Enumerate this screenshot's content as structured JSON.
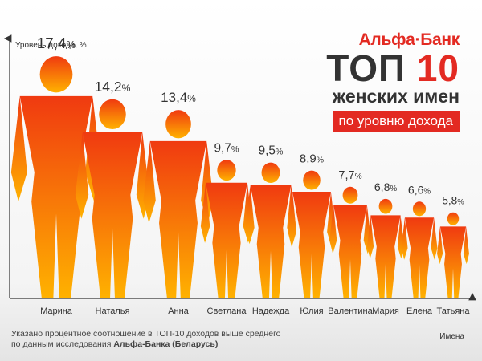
{
  "brand": {
    "name": "Альфа·Банк",
    "top_word": "ТОП",
    "top_number": "10",
    "subtitle": "женских имен",
    "badge": "по уровню дохода"
  },
  "footnote": {
    "line1": "Указано процентное соотношение в ТОП-10 доходов выше среднего",
    "line2_prefix": "по данным исследования",
    "line2_bold": "Альфа-Банка (Беларусь)"
  },
  "colors": {
    "accent": "#e32a22",
    "figure_top": "#f03a10",
    "figure_bottom": "#ffb200"
  },
  "chart_data": {
    "type": "bar",
    "ylabel": "Уровень дохода, %",
    "xlabel": "Имена",
    "categories": [
      "Марина",
      "Наталья",
      "Анна",
      "Светлана",
      "Надежда",
      "Юлия",
      "Валентина",
      "Мария",
      "Елена",
      "Татьяна"
    ],
    "values": [
      17.4,
      14.2,
      13.4,
      9.7,
      9.5,
      8.9,
      7.7,
      6.8,
      6.6,
      5.8
    ],
    "value_labels": [
      "17,4",
      "14,2",
      "13,4",
      "9,7",
      "9,5",
      "8,9",
      "7,7",
      "6,8",
      "6,6",
      "5,8"
    ],
    "value_unit": "%",
    "ylim": [
      0,
      18
    ],
    "grid": false,
    "mark": "silhouette"
  }
}
